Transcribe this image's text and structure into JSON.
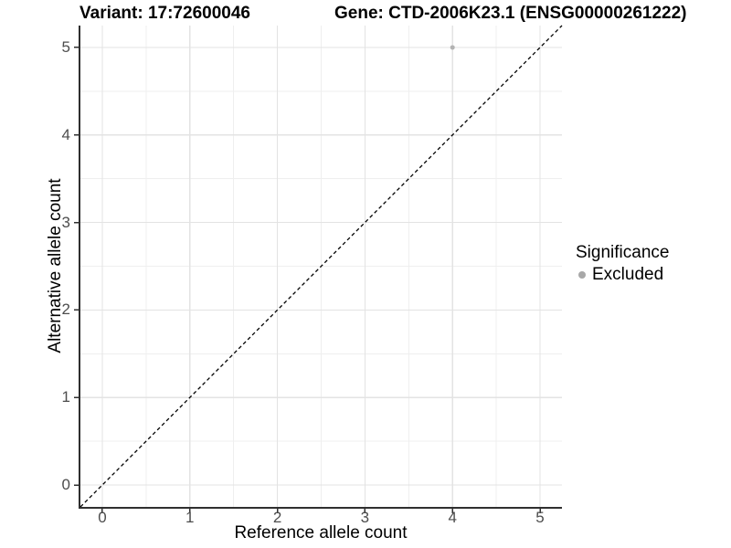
{
  "chart_data": {
    "type": "scatter",
    "titles": {
      "left": "Variant: 17:72600046",
      "right": "Gene: CTD-2006K23.1 (ENSG00000261222)"
    },
    "xlabel": "Reference allele count",
    "ylabel": "Alternative allele count",
    "xlim": [
      -0.25,
      5.25
    ],
    "ylim": [
      -0.25,
      5.25
    ],
    "xticks": [
      0,
      1,
      2,
      3,
      4,
      5
    ],
    "yticks": [
      0,
      1,
      2,
      3,
      4,
      5
    ],
    "grid": "major and minor, minor at 0.5 steps",
    "minor_step": 0.5,
    "points": [
      {
        "x": 4,
        "y": 5,
        "series": "Excluded",
        "color": "#b3b3b3",
        "radius_px": 2.5
      }
    ],
    "reference_line": {
      "type": "identity y=x",
      "style": "dashed",
      "color": "#000000",
      "x1": -0.25,
      "y1": -0.25,
      "x2": 5.25,
      "y2": 5.25
    },
    "legend": {
      "title": "Significance",
      "position": "right-middle",
      "entries": [
        {
          "label": "Excluded",
          "color": "#a8a8a8"
        }
      ]
    },
    "colors": {
      "axis_line": "#2f2f2f",
      "tick_label": "#4d4d4d",
      "grid_major": "#e3e3e3",
      "grid_minor": "#efefef",
      "background": "#ffffff"
    }
  }
}
